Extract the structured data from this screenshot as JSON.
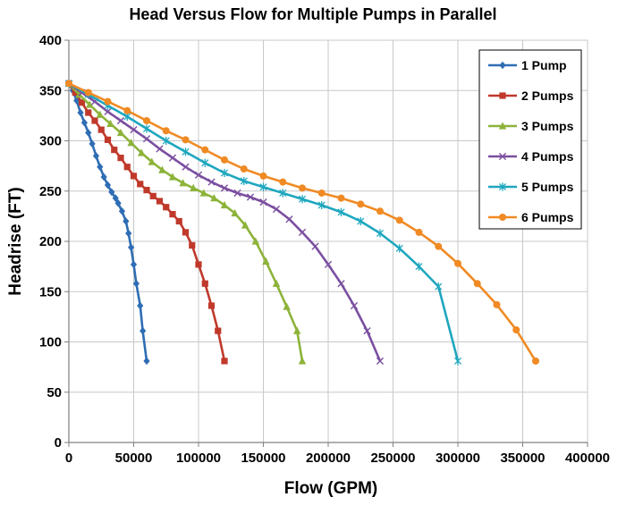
{
  "chart_data": {
    "type": "line",
    "title": "Head Versus Flow for Multiple Pumps in Parallel",
    "xlabel": "Flow (GPM)",
    "ylabel": "Headrise (FT)",
    "xlim": [
      0,
      400000
    ],
    "ylim": [
      0,
      400
    ],
    "x_ticks": [
      "0",
      "50000",
      "100000",
      "150000",
      "200000",
      "250000",
      "300000",
      "350000",
      "400000"
    ],
    "y_ticks": [
      "0",
      "50",
      "100",
      "150",
      "200",
      "250",
      "300",
      "350",
      "400"
    ],
    "grid": true,
    "legend_position": "top-right",
    "series": [
      {
        "name": "1 Pump",
        "color": "#2E6DB4",
        "marker": "diamond",
        "x": [
          0,
          3000,
          6000,
          9000,
          12000,
          15000,
          18000,
          21000,
          24000,
          27000,
          30000,
          33000,
          36000,
          38000,
          41000,
          44000,
          46000,
          48000,
          50000,
          52000,
          55000,
          57000,
          60000
        ],
        "y": [
          357,
          350,
          340,
          328,
          318,
          308,
          297,
          285,
          274,
          264,
          256,
          249,
          243,
          238,
          230,
          220,
          208,
          194,
          177,
          158,
          136,
          111,
          81
        ]
      },
      {
        "name": "2 Pumps",
        "color": "#C0392B",
        "marker": "square",
        "x": [
          0,
          5000,
          10000,
          15000,
          20000,
          25000,
          30000,
          35000,
          40000,
          45000,
          50000,
          55000,
          60000,
          65000,
          70000,
          75000,
          80000,
          85000,
          90000,
          95000,
          100000,
          105000,
          110000,
          115000,
          120000
        ],
        "y": [
          357,
          348,
          338,
          328,
          320,
          311,
          301,
          291,
          283,
          274,
          265,
          257,
          251,
          245,
          240,
          234,
          227,
          220,
          209,
          196,
          177,
          158,
          136,
          111,
          81
        ]
      },
      {
        "name": "3 Pumps",
        "color": "#8DB33A",
        "marker": "triangle",
        "x": [
          0,
          8000,
          16000,
          24000,
          32000,
          40000,
          48000,
          56000,
          64000,
          72000,
          80000,
          88000,
          96000,
          104000,
          112000,
          120000,
          128000,
          136000,
          144000,
          152000,
          160000,
          168000,
          176000,
          180000
        ],
        "y": [
          357,
          346,
          336,
          326,
          317,
          308,
          298,
          288,
          279,
          271,
          264,
          258,
          253,
          248,
          243,
          236,
          228,
          216,
          200,
          180,
          158,
          135,
          111,
          81
        ]
      },
      {
        "name": "4 Pumps",
        "color": "#7B4FA0",
        "marker": "x",
        "x": [
          0,
          10000,
          20000,
          30000,
          40000,
          50000,
          60000,
          70000,
          80000,
          90000,
          100000,
          110000,
          120000,
          130000,
          140000,
          150000,
          160000,
          170000,
          180000,
          190000,
          200000,
          210000,
          220000,
          230000,
          240000
        ],
        "y": [
          357,
          348,
          339,
          329,
          320,
          311,
          302,
          292,
          283,
          274,
          266,
          259,
          253,
          248,
          244,
          239,
          232,
          222,
          209,
          195,
          177,
          158,
          136,
          111,
          81
        ]
      },
      {
        "name": "5 Pumps",
        "color": "#1FA7BF",
        "marker": "star",
        "x": [
          0,
          15000,
          30000,
          45000,
          60000,
          75000,
          90000,
          105000,
          120000,
          135000,
          150000,
          165000,
          180000,
          195000,
          210000,
          225000,
          240000,
          255000,
          270000,
          285000,
          300000
        ],
        "y": [
          357,
          346,
          335,
          324,
          312,
          300,
          289,
          278,
          268,
          260,
          254,
          248,
          242,
          236,
          229,
          220,
          208,
          193,
          175,
          155,
          81
        ]
      },
      {
        "name": "6 Pumps",
        "color": "#F08A24",
        "marker": "circle",
        "x": [
          0,
          15000,
          30000,
          45000,
          60000,
          75000,
          90000,
          105000,
          120000,
          135000,
          150000,
          165000,
          180000,
          195000,
          210000,
          225000,
          240000,
          255000,
          270000,
          285000,
          300000,
          315000,
          330000,
          345000,
          360000
        ],
        "y": [
          357,
          348,
          339,
          330,
          320,
          310,
          301,
          291,
          281,
          272,
          265,
          259,
          253,
          248,
          243,
          237,
          230,
          221,
          209,
          195,
          178,
          158,
          137,
          112,
          81
        ]
      }
    ]
  }
}
